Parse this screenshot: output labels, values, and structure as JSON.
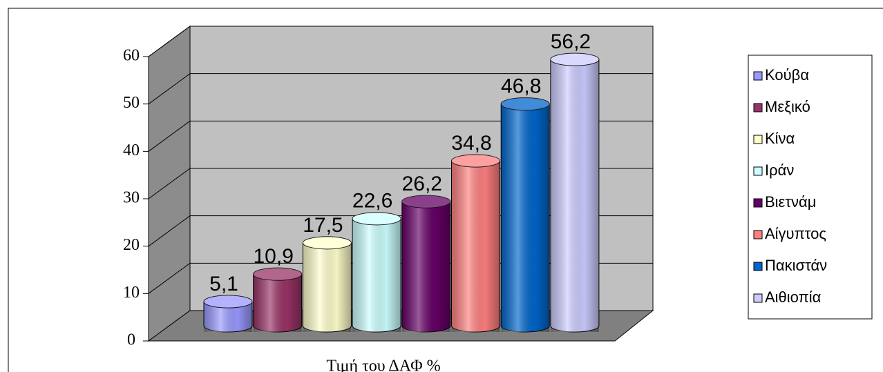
{
  "chart_data": {
    "type": "bar3d-cylinder",
    "x_label": "Τιμή του ΔΑΦ %",
    "ylim": [
      0,
      60
    ],
    "yticks": [
      0,
      10,
      20,
      30,
      40,
      50,
      60
    ],
    "grid": true,
    "legend": "right",
    "series": [
      {
        "name": "Κούβα",
        "color": "#9999ff",
        "values": [
          5.1
        ],
        "value_labels": [
          "5,1"
        ]
      },
      {
        "name": "Μεξικό",
        "color": "#993366",
        "values": [
          10.9
        ],
        "value_labels": [
          "10,9"
        ]
      },
      {
        "name": "Κίνα",
        "color": "#ffffcc",
        "values": [
          17.5
        ],
        "value_labels": [
          "17,5"
        ]
      },
      {
        "name": "Ιράν",
        "color": "#ccffff",
        "values": [
          22.6
        ],
        "value_labels": [
          "22,6"
        ]
      },
      {
        "name": "Βιετνάμ",
        "color": "#660066",
        "values": [
          26.2
        ],
        "value_labels": [
          "26,2"
        ]
      },
      {
        "name": "Αίγυπτος",
        "color": "#ff8080",
        "values": [
          34.8
        ],
        "value_labels": [
          "34,8"
        ]
      },
      {
        "name": "Πακιστάν",
        "color": "#0066cc",
        "values": [
          46.8
        ],
        "value_labels": [
          "46,8"
        ]
      },
      {
        "name": "Αιθιοπία",
        "color": "#ccccff",
        "values": [
          56.2
        ],
        "value_labels": [
          "56,2"
        ]
      }
    ]
  }
}
